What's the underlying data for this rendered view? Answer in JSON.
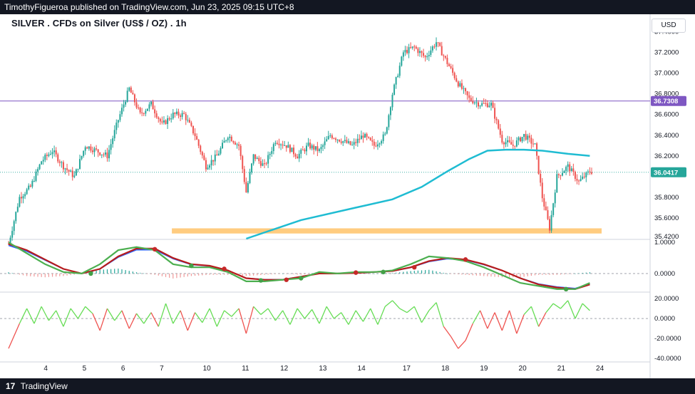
{
  "header": {
    "published": "TimothyFigueroa published on TradingView.com, Jun 23, 2025 09:15 UTC+8"
  },
  "title": {
    "text": "SILVER . CFDs on Silver (US$ / OZ) . 1h"
  },
  "currency": "USD",
  "footer": {
    "logo": "17",
    "brand": "TradingView"
  },
  "colors": {
    "up": "#26a69a",
    "down": "#ef5350",
    "ma": "#1fbcd2",
    "hline": "#7e57c2",
    "zone": "#ffcc80",
    "osc_fast": "#4caf50",
    "osc_slow": "#b71c1c",
    "osc_blue": "#2962ff",
    "rsi_up": "#66dd55",
    "rsi_down": "#ef5350",
    "dark": "#131722"
  },
  "chart_data": [
    {
      "type": "candlestick",
      "title": "SILVER . CFDs on Silver (US$ / OZ) . 1h",
      "x_tick_labels": [
        "4",
        "5",
        "6",
        "7",
        "10",
        "11",
        "12",
        "13",
        "14",
        "17",
        "18",
        "19",
        "20",
        "21",
        "24"
      ],
      "y_tick_labels": [
        "37.4000",
        "37.2000",
        "37.0000",
        "36.8000",
        "36.6000",
        "36.4000",
        "36.2000",
        "35.8000",
        "35.6000",
        "35.4200"
      ],
      "ylim": [
        35.4,
        37.5
      ],
      "price_labels": [
        {
          "value": 36.7308,
          "text": "36.7308",
          "style": "purple"
        },
        {
          "value": 36.0417,
          "text": "36.0417",
          "style": "teal"
        }
      ],
      "horizontal_line": 36.7308,
      "support_zone": [
        35.45,
        35.5
      ],
      "anchor_closes": [
        [
          0,
          35.35
        ],
        [
          6,
          35.8
        ],
        [
          12,
          35.9
        ],
        [
          18,
          36.15
        ],
        [
          24,
          36.25
        ],
        [
          30,
          36.1
        ],
        [
          36,
          36.0
        ],
        [
          42,
          36.3
        ],
        [
          48,
          36.25
        ],
        [
          54,
          36.2
        ],
        [
          60,
          36.55
        ],
        [
          66,
          36.85
        ],
        [
          72,
          36.6
        ],
        [
          78,
          36.7
        ],
        [
          84,
          36.5
        ],
        [
          90,
          36.6
        ],
        [
          96,
          36.6
        ],
        [
          102,
          36.4
        ],
        [
          108,
          36.1
        ],
        [
          114,
          36.2
        ],
        [
          120,
          36.4
        ],
        [
          126,
          36.3
        ],
        [
          130,
          35.85
        ],
        [
          134,
          36.2
        ],
        [
          140,
          36.1
        ],
        [
          146,
          36.35
        ],
        [
          152,
          36.3
        ],
        [
          158,
          36.2
        ],
        [
          164,
          36.3
        ],
        [
          170,
          36.25
        ],
        [
          176,
          36.4
        ],
        [
          182,
          36.35
        ],
        [
          188,
          36.3
        ],
        [
          194,
          36.4
        ],
        [
          200,
          36.3
        ],
        [
          206,
          36.4
        ],
        [
          210,
          36.8
        ],
        [
          216,
          37.2
        ],
        [
          222,
          37.25
        ],
        [
          228,
          37.15
        ],
        [
          234,
          37.3
        ],
        [
          240,
          37.1
        ],
        [
          246,
          36.9
        ],
        [
          252,
          36.75
        ],
        [
          258,
          36.7
        ],
        [
          264,
          36.7
        ],
        [
          270,
          36.35
        ],
        [
          276,
          36.3
        ],
        [
          282,
          36.4
        ],
        [
          288,
          36.3
        ],
        [
          292,
          35.8
        ],
        [
          296,
          35.5
        ],
        [
          300,
          36.0
        ],
        [
          306,
          36.1
        ],
        [
          312,
          35.95
        ],
        [
          318,
          36.05
        ]
      ],
      "moving_average": [
        [
          130,
          35.4
        ],
        [
          160,
          35.58
        ],
        [
          190,
          35.7
        ],
        [
          210,
          35.78
        ],
        [
          226,
          35.9
        ],
        [
          240,
          36.05
        ],
        [
          252,
          36.17
        ],
        [
          262,
          36.25
        ],
        [
          272,
          36.26
        ],
        [
          282,
          36.26
        ],
        [
          292,
          36.25
        ],
        [
          306,
          36.22
        ],
        [
          318,
          36.2
        ]
      ]
    },
    {
      "type": "line",
      "name_hint": "oscillator",
      "y_tick_labels": [
        "1.0000",
        "0.0000"
      ],
      "ylim": [
        -0.55,
        1.05
      ],
      "fast": [
        [
          0,
          1.0
        ],
        [
          10,
          0.65
        ],
        [
          20,
          0.3
        ],
        [
          30,
          0.05
        ],
        [
          40,
          0.0
        ],
        [
          50,
          0.3
        ],
        [
          60,
          0.75
        ],
        [
          70,
          0.85
        ],
        [
          80,
          0.75
        ],
        [
          90,
          0.3
        ],
        [
          100,
          0.2
        ],
        [
          110,
          0.2
        ],
        [
          120,
          0.05
        ],
        [
          130,
          -0.25
        ],
        [
          140,
          -0.25
        ],
        [
          150,
          -0.2
        ],
        [
          160,
          -0.15
        ],
        [
          170,
          0.05
        ],
        [
          180,
          0.0
        ],
        [
          190,
          0.05
        ],
        [
          200,
          0.05
        ],
        [
          210,
          0.1
        ],
        [
          220,
          0.3
        ],
        [
          230,
          0.55
        ],
        [
          240,
          0.5
        ],
        [
          250,
          0.4
        ],
        [
          260,
          0.2
        ],
        [
          270,
          -0.05
        ],
        [
          280,
          -0.3
        ],
        [
          290,
          -0.4
        ],
        [
          300,
          -0.5
        ],
        [
          310,
          -0.5
        ],
        [
          318,
          -0.3
        ]
      ],
      "slow": [
        [
          0,
          0.95
        ],
        [
          10,
          0.75
        ],
        [
          20,
          0.45
        ],
        [
          30,
          0.15
        ],
        [
          40,
          0.0
        ],
        [
          50,
          0.15
        ],
        [
          60,
          0.55
        ],
        [
          70,
          0.8
        ],
        [
          80,
          0.8
        ],
        [
          90,
          0.5
        ],
        [
          100,
          0.3
        ],
        [
          110,
          0.25
        ],
        [
          120,
          0.1
        ],
        [
          130,
          -0.15
        ],
        [
          140,
          -0.2
        ],
        [
          150,
          -0.2
        ],
        [
          160,
          -0.1
        ],
        [
          170,
          0.0
        ],
        [
          180,
          0.0
        ],
        [
          190,
          0.02
        ],
        [
          200,
          0.05
        ],
        [
          210,
          0.08
        ],
        [
          220,
          0.2
        ],
        [
          230,
          0.4
        ],
        [
          240,
          0.5
        ],
        [
          250,
          0.45
        ],
        [
          260,
          0.3
        ],
        [
          270,
          0.1
        ],
        [
          280,
          -0.15
        ],
        [
          290,
          -0.35
        ],
        [
          300,
          -0.45
        ],
        [
          310,
          -0.5
        ],
        [
          318,
          -0.35
        ]
      ],
      "markers": [
        {
          "x": 45,
          "y": 0.0,
          "color": "green"
        },
        {
          "x": 80,
          "y": 0.78,
          "color": "red"
        },
        {
          "x": 100,
          "y": 0.25,
          "color": "green"
        },
        {
          "x": 118,
          "y": 0.15,
          "color": "red"
        },
        {
          "x": 138,
          "y": -0.22,
          "color": "green"
        },
        {
          "x": 152,
          "y": -0.2,
          "color": "red"
        },
        {
          "x": 160,
          "y": -0.15,
          "color": "green"
        },
        {
          "x": 190,
          "y": 0.03,
          "color": "red"
        },
        {
          "x": 205,
          "y": 0.05,
          "color": "green"
        },
        {
          "x": 222,
          "y": 0.2,
          "color": "red"
        },
        {
          "x": 250,
          "y": 0.45,
          "color": "red"
        },
        {
          "x": 305,
          "y": -0.5,
          "color": "green"
        }
      ]
    },
    {
      "type": "line",
      "name_hint": "momentum",
      "y_tick_labels": [
        "20.0000",
        "0.0000",
        "-20.0000",
        "-40.0000"
      ],
      "ylim": [
        -42,
        25
      ],
      "values": [
        [
          0,
          -30
        ],
        [
          6,
          -5
        ],
        [
          10,
          10
        ],
        [
          14,
          -5
        ],
        [
          18,
          12
        ],
        [
          22,
          -2
        ],
        [
          26,
          8
        ],
        [
          30,
          -8
        ],
        [
          34,
          10
        ],
        [
          38,
          0
        ],
        [
          42,
          12
        ],
        [
          46,
          5
        ],
        [
          50,
          -12
        ],
        [
          54,
          10
        ],
        [
          58,
          -2
        ],
        [
          62,
          8
        ],
        [
          66,
          -10
        ],
        [
          70,
          5
        ],
        [
          74,
          -5
        ],
        [
          78,
          6
        ],
        [
          82,
          -8
        ],
        [
          86,
          15
        ],
        [
          90,
          -5
        ],
        [
          94,
          8
        ],
        [
          98,
          -12
        ],
        [
          102,
          6
        ],
        [
          106,
          -4
        ],
        [
          110,
          10
        ],
        [
          114,
          -8
        ],
        [
          118,
          8
        ],
        [
          122,
          2
        ],
        [
          126,
          10
        ],
        [
          130,
          -15
        ],
        [
          134,
          12
        ],
        [
          138,
          4
        ],
        [
          142,
          10
        ],
        [
          146,
          -2
        ],
        [
          150,
          8
        ],
        [
          154,
          -6
        ],
        [
          158,
          10
        ],
        [
          162,
          0
        ],
        [
          166,
          9
        ],
        [
          170,
          -5
        ],
        [
          174,
          12
        ],
        [
          178,
          0
        ],
        [
          182,
          6
        ],
        [
          186,
          -6
        ],
        [
          190,
          8
        ],
        [
          194,
          -3
        ],
        [
          198,
          10
        ],
        [
          202,
          -6
        ],
        [
          206,
          12
        ],
        [
          210,
          18
        ],
        [
          214,
          10
        ],
        [
          218,
          6
        ],
        [
          222,
          12
        ],
        [
          226,
          -4
        ],
        [
          230,
          8
        ],
        [
          234,
          16
        ],
        [
          238,
          -8
        ],
        [
          242,
          -18
        ],
        [
          246,
          -30
        ],
        [
          250,
          -22
        ],
        [
          254,
          -5
        ],
        [
          258,
          8
        ],
        [
          262,
          -10
        ],
        [
          266,
          6
        ],
        [
          270,
          -12
        ],
        [
          274,
          8
        ],
        [
          278,
          -15
        ],
        [
          282,
          4
        ],
        [
          286,
          12
        ],
        [
          290,
          -8
        ],
        [
          294,
          6
        ],
        [
          298,
          15
        ],
        [
          302,
          10
        ],
        [
          306,
          18
        ],
        [
          310,
          0
        ],
        [
          314,
          15
        ],
        [
          318,
          8
        ]
      ]
    }
  ]
}
